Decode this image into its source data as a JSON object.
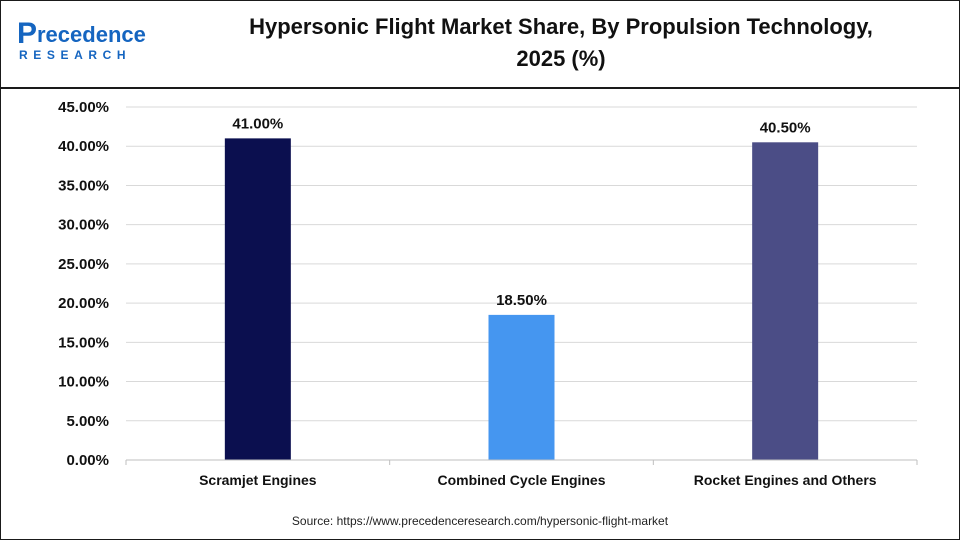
{
  "brand": {
    "name_top": "recedence",
    "name_initial": "P",
    "name_bottom": "RESEARCH"
  },
  "source": "Source: https://www.precedenceresearch.com/hypersonic-flight-market",
  "colors": {
    "bar_1": "#0b0f4f",
    "bar_2": "#4596f0",
    "bar_3": "#4b4d86",
    "logo_blue": "#1565c0"
  },
  "chart_data": {
    "type": "bar",
    "title": "Hypersonic Flight Market Share, By Propulsion Technology, 2025 (%)",
    "title_lines": [
      "Hypersonic Flight Market Share, By Propulsion Technology,",
      "2025 (%)"
    ],
    "categories": [
      "Scramjet Engines",
      "Combined Cycle Engines",
      "Rocket Engines and Others"
    ],
    "values": [
      41.0,
      18.5,
      40.5
    ],
    "value_labels": [
      "41.00%",
      "18.50%",
      "40.50%"
    ],
    "yticks": [
      0,
      5,
      10,
      15,
      20,
      25,
      30,
      35,
      40,
      45
    ],
    "ytick_labels": [
      "0.00%",
      "5.00%",
      "10.00%",
      "15.00%",
      "20.00%",
      "25.00%",
      "30.00%",
      "35.00%",
      "40.00%",
      "45.00%"
    ],
    "ylim": [
      0,
      45
    ],
    "xlabel": "",
    "ylabel": "",
    "grid": true,
    "legend": "none"
  }
}
